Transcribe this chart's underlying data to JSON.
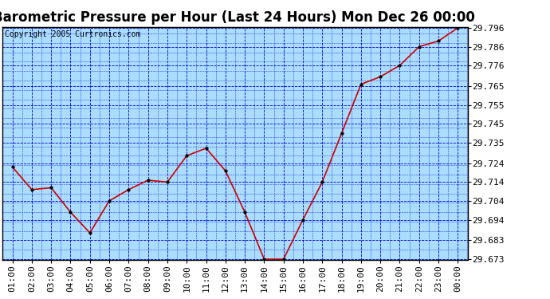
{
  "title": "Barometric Pressure per Hour (Last 24 Hours) Mon Dec 26 00:00",
  "copyright": "Copyright 2005 Curtronics.com",
  "hours": [
    "01:00",
    "02:00",
    "03:00",
    "04:00",
    "05:00",
    "06:00",
    "07:00",
    "08:00",
    "09:00",
    "10:00",
    "11:00",
    "12:00",
    "13:00",
    "14:00",
    "15:00",
    "16:00",
    "17:00",
    "18:00",
    "19:00",
    "20:00",
    "21:00",
    "22:00",
    "23:00",
    "00:00"
  ],
  "values": [
    29.722,
    29.71,
    29.711,
    29.698,
    29.687,
    29.704,
    29.71,
    29.715,
    29.714,
    29.728,
    29.732,
    29.72,
    29.698,
    29.673,
    29.673,
    29.694,
    29.714,
    29.74,
    29.766,
    29.77,
    29.776,
    29.786,
    29.789,
    29.796
  ],
  "ylim_min": 29.673,
  "ylim_max": 29.796,
  "yticks": [
    29.673,
    29.683,
    29.694,
    29.704,
    29.714,
    29.724,
    29.735,
    29.745,
    29.755,
    29.765,
    29.776,
    29.786,
    29.796
  ],
  "line_color": "#cc0000",
  "marker_color": "#000000",
  "plot_bg_color": "#aaddff",
  "outer_bg_color": "#ffffff",
  "grid_color": "#0000cc",
  "title_color": "#000000",
  "title_fontsize": 12,
  "copyright_fontsize": 7,
  "tick_fontsize": 8,
  "tick_color": "#000000"
}
